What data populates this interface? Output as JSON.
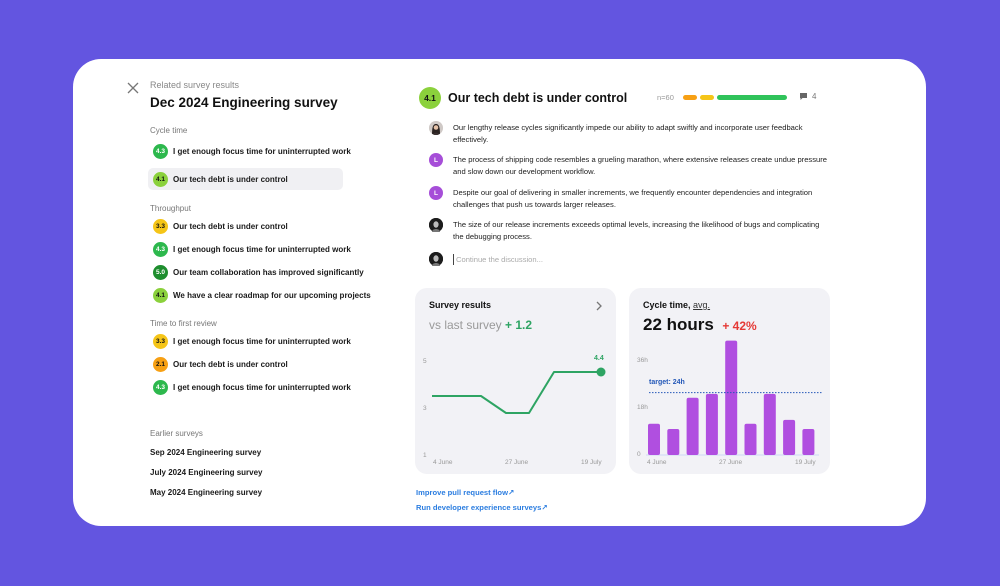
{
  "colors": {
    "background": "#6355e0",
    "card": "#ffffff",
    "score_high": "#2db84d",
    "score_top": "#1e8e2e",
    "score_mid_high": "#8bd13c",
    "score_mid": "#f5c518",
    "score_low": "#f7a014",
    "line_green": "#2ea463",
    "bar_purple": "#b04fe0",
    "target_line": "#2458b8",
    "delta_negative": "#e53935",
    "link_blue": "#2b7de0"
  },
  "sidebar": {
    "close_icon": "close-icon",
    "related_label": "Related survey results",
    "title": "Dec 2024 Engineering survey",
    "groups": [
      {
        "label": "Cycle time",
        "items": [
          {
            "score": "4.3",
            "label": "I get enough focus time for uninterrupted work",
            "color": "#2db84d",
            "text_color": "#ffffff",
            "active": false
          },
          {
            "score": "4.1",
            "label": "Our tech debt is under control",
            "color": "#8bd13c",
            "text_color": "#111111",
            "active": true
          }
        ]
      },
      {
        "label": "Throughput",
        "items": [
          {
            "score": "3.3",
            "label": "Our tech debt is under control",
            "color": "#f5c518",
            "text_color": "#111111",
            "active": false
          },
          {
            "score": "4.3",
            "label": "I get enough focus time for uninterrupted work",
            "color": "#2db84d",
            "text_color": "#ffffff",
            "active": false
          },
          {
            "score": "5.0",
            "label": "Our team collaboration has improved significantly",
            "color": "#1e8e2e",
            "text_color": "#ffffff",
            "active": false
          },
          {
            "score": "4.1",
            "label": "We have a clear roadmap for our upcoming projects",
            "color": "#8bd13c",
            "text_color": "#111111",
            "active": false
          }
        ]
      },
      {
        "label": "Time to first review",
        "items": [
          {
            "score": "3.3",
            "label": "I get enough focus time for uninterrupted work",
            "color": "#f5c518",
            "text_color": "#111111",
            "active": false
          },
          {
            "score": "2.1",
            "label": "Our tech debt is under control",
            "color": "#f7a014",
            "text_color": "#111111",
            "active": false
          },
          {
            "score": "4.3",
            "label": "I get enough focus time for uninterrupted work",
            "color": "#2db84d",
            "text_color": "#ffffff",
            "active": false
          }
        ]
      }
    ],
    "earlier_label": "Earlier surveys",
    "earlier": [
      "Sep 2024 Engineering survey",
      "July 2024 Engineering survey",
      "May 2024 Engineering survey"
    ]
  },
  "question": {
    "score": "4.1",
    "title": "Our tech debt is under control",
    "n_label": "n=60",
    "distribution": [
      {
        "color": "#f7a014",
        "width": 14
      },
      {
        "color": "#f5c518",
        "width": 14
      },
      {
        "color": "#2fc35a",
        "width": 70
      }
    ],
    "comment_count": "4"
  },
  "comments": [
    {
      "avatar": "photo-woman",
      "initial": "",
      "text": "Our lengthy release cycles significantly impede our ability to adapt swiftly and incorporate user feedback effectively."
    },
    {
      "avatar": "initial",
      "initial": "L",
      "text": "The process of shipping code resembles a grueling marathon, where extensive releases create undue pressure and slow down our development workflow."
    },
    {
      "avatar": "initial",
      "initial": "L",
      "text": "Despite our goal of delivering in smaller increments, we frequently encounter dependencies and integration challenges that push us towards larger releases."
    },
    {
      "avatar": "photo-dark",
      "initial": "",
      "text": "The size of our release increments exceeds optimal levels, increasing the likelihood of bugs and complicating the debugging process."
    }
  ],
  "reply": {
    "placeholder": "Continue the discussion..."
  },
  "survey_panel": {
    "title": "Survey results",
    "subtitle": "vs last survey",
    "delta": "+ 1.2",
    "last_value_label": "4.4"
  },
  "cycle_panel": {
    "title": "Cycle time,",
    "title_suffix": "avg.",
    "value": "22 hours",
    "delta": "+ 42%",
    "target_label": "target: 24h"
  },
  "links": [
    "Improve pull request flow↗",
    "Run developer experience surveys↗"
  ],
  "chart_data": [
    {
      "type": "line",
      "title": "Survey results",
      "subtitle": "vs last survey + 1.2",
      "x": [
        "4 June",
        "",
        "",
        "27 June",
        "",
        "",
        "19 July"
      ],
      "xtick_labels": [
        "4 June",
        "27 June",
        "19 July"
      ],
      "series": [
        {
          "name": "Score",
          "values": [
            3.5,
            3.5,
            2.7,
            2.7,
            4.4,
            4.4,
            4.4
          ]
        }
      ],
      "points": [
        [
          0,
          3.5
        ],
        [
          0.27,
          3.5
        ],
        [
          0.43,
          2.7
        ],
        [
          0.55,
          2.7
        ],
        [
          0.7,
          4.4
        ],
        [
          1.0,
          4.4
        ]
      ],
      "yticks": [
        1,
        3,
        5
      ],
      "ylim": [
        1,
        5
      ],
      "annotations": [
        {
          "x": "19 July",
          "y": 4.4,
          "label": "4.4"
        }
      ],
      "grid": false
    },
    {
      "type": "bar",
      "title": "Cycle time, avg.",
      "subtitle": "22 hours +42%",
      "categories": [
        "1",
        "2",
        "3",
        "4",
        "5",
        "6",
        "7",
        "8",
        "9"
      ],
      "xtick_labels": [
        "4 June",
        "27 June",
        "19 July"
      ],
      "values": [
        12,
        10,
        22,
        23.5,
        44,
        12,
        23.5,
        13.5,
        10
      ],
      "ylabel": "hours",
      "yticks": [
        "0",
        "18h",
        "36h"
      ],
      "ylim": [
        0,
        45
      ],
      "target": {
        "value": 24,
        "label": "target: 24h"
      },
      "grid": false
    }
  ]
}
